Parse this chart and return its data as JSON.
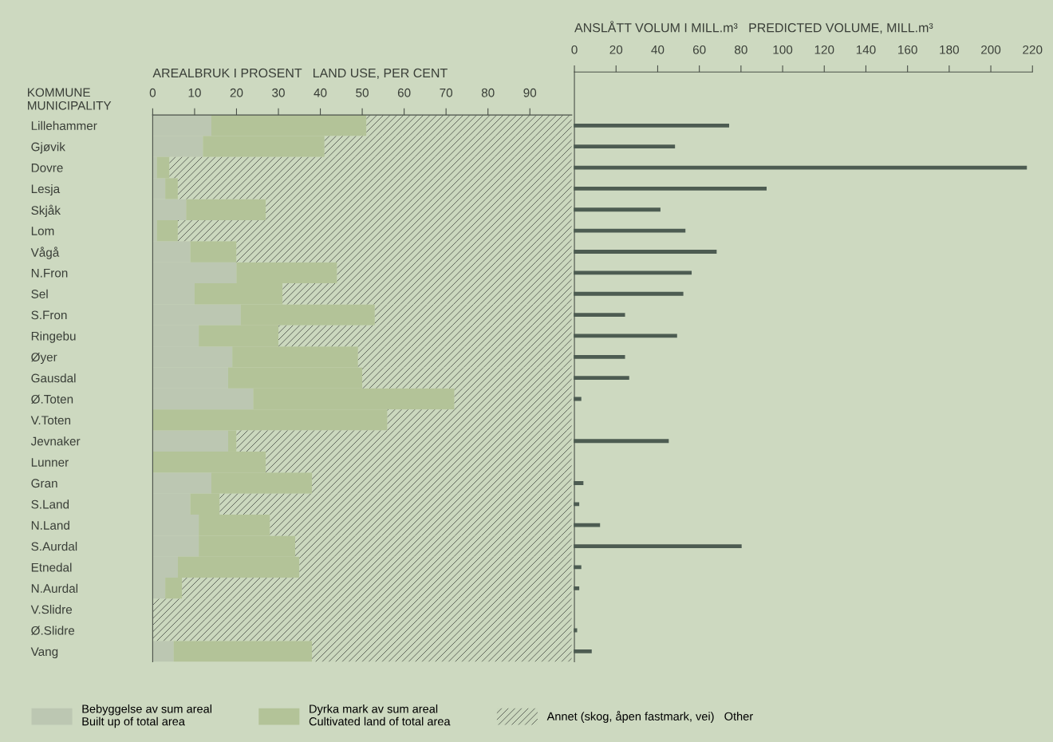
{
  "chart_data": [
    {
      "type": "bar",
      "orientation": "horizontal",
      "stacked": true,
      "title": "AREALBRUK I PROSENT   LAND USE, PER CENT",
      "ylabel": "KOMMUNE\nMUNICIPALITY",
      "categories": [
        "Lillehammer",
        "Gjøvik",
        "Dovre",
        "Lesja",
        "Skjåk",
        "Lom",
        "Vågå",
        "N.Fron",
        "Sel",
        "S.Fron",
        "Ringebu",
        "Øyer",
        "Gausdal",
        "Ø.Toten",
        "V.Toten",
        "Jevnaker",
        "Lunner",
        "Gran",
        "S.Land",
        "N.Land",
        "S.Aurdal",
        "Etnedal",
        "N.Aurdal",
        "V.Slidre",
        "Ø.Slidre",
        "Vang"
      ],
      "series": [
        {
          "name": "Bebyggelse av sum areal\nBuilt up of total area",
          "color": "#bcc7b2",
          "values": [
            14,
            12,
            1,
            3,
            8,
            1,
            9,
            20,
            10,
            21,
            11,
            19,
            18,
            24,
            0,
            18,
            0,
            14,
            9,
            11,
            11,
            6,
            3,
            0,
            0,
            5
          ]
        },
        {
          "name": "Dyrka mark av sum areal\nCultivated land of total area",
          "color": "#b3c398",
          "values": [
            37,
            29,
            3,
            3,
            19,
            5,
            11,
            24,
            21,
            32,
            19,
            30,
            32,
            48,
            56,
            2,
            27,
            24,
            7,
            17,
            23,
            29,
            4,
            0,
            0,
            33
          ]
        },
        {
          "name": "Annet (skog, åpen fastmark, vei)   Other",
          "color": "#cbd8be",
          "values": [
            49,
            59,
            96,
            94,
            73,
            94,
            80,
            56,
            69,
            47,
            70,
            51,
            50,
            28,
            44,
            80,
            73,
            62,
            84,
            72,
            66,
            65,
            93,
            100,
            100,
            62
          ]
        }
      ],
      "xlim": [
        0,
        100
      ],
      "xticks": [
        0,
        10,
        20,
        30,
        40,
        50,
        60,
        70,
        80,
        90
      ],
      "legend": "bottom"
    },
    {
      "type": "bar",
      "orientation": "horizontal",
      "title": "ANSLÅTT VOLUM I MILL.m³   PREDICTED VOLUME, MILL.m³",
      "categories": [
        null,
        null,
        null,
        null,
        null,
        null,
        null,
        null,
        null,
        null,
        null,
        null,
        null,
        null,
        null,
        null,
        null,
        null,
        null,
        null,
        null,
        null,
        null,
        null,
        null,
        null
      ],
      "values": [
        74,
        48,
        217,
        92,
        41,
        53,
        68,
        56,
        52,
        24,
        49,
        24,
        26,
        3,
        null,
        45,
        null,
        4,
        2,
        12,
        80,
        3,
        2,
        null,
        1,
        8
      ],
      "color": "#4d5c52",
      "xlim": [
        0,
        220
      ],
      "xticks": [
        0,
        20,
        40,
        60,
        80,
        100,
        120,
        140,
        160,
        180,
        200,
        220
      ],
      "tick_labels": "x"
    }
  ]
}
